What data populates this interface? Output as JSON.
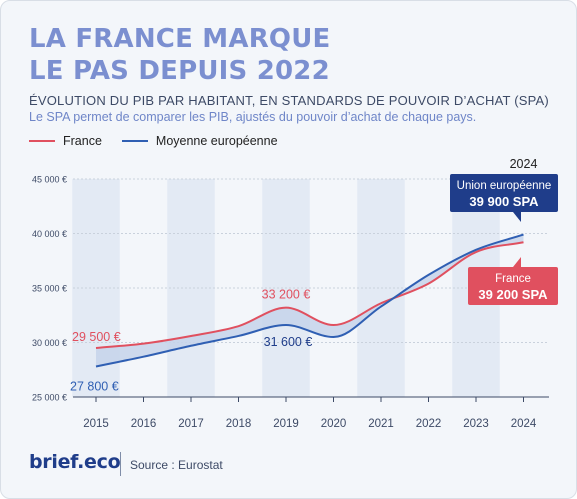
{
  "header": {
    "title_line1": "LA FRANCE MARQUE",
    "title_line2": "LE PAS DEPUIS 2022",
    "subtitle": "ÉVOLUTION DU PIB PAR HABITANT, EN STANDARDS DE POUVOIR D’ACHAT (SPA)",
    "note": "Le SPA permet de comparer les PIB, ajustés du pouvoir d’achat de chaque pays."
  },
  "legend": [
    {
      "label": "France",
      "color": "#e0505f"
    },
    {
      "label": "Moyenne européenne",
      "color": "#2f5fb3"
    }
  ],
  "chart_data": {
    "type": "line",
    "x": [
      2015,
      2016,
      2017,
      2018,
      2019,
      2020,
      2021,
      2022,
      2023,
      2024
    ],
    "x_tick_labels": [
      "2015",
      "2016",
      "2017",
      "2018",
      "2019",
      "2020",
      "2021",
      "2022",
      "2023",
      "2024"
    ],
    "ylim": [
      25000,
      45000
    ],
    "y_ticks": [
      25000,
      30000,
      35000,
      40000,
      45000
    ],
    "y_tick_labels": [
      "25 000 €",
      "30 000 €",
      "35 000 €",
      "40 000 €",
      "45 000 €"
    ],
    "grid": true,
    "series": [
      {
        "name": "France",
        "color": "#e0505f",
        "values": [
          29500,
          29900,
          30600,
          31500,
          33200,
          31600,
          33600,
          35400,
          38300,
          39200
        ]
      },
      {
        "name": "Moyenne européenne",
        "color": "#2f5fb3",
        "values": [
          27800,
          28700,
          29700,
          30600,
          31600,
          30500,
          33300,
          36200,
          38500,
          39900
        ]
      }
    ],
    "year_label": "2024",
    "annotations": {
      "fr_2015": "29 500 €",
      "eu_2015": "27 800 €",
      "fr_2019": "33 200 €",
      "eu_2019": "31 600 €"
    },
    "callouts": {
      "eu": {
        "line1": "Union européenne",
        "line2": "39 900 SPA"
      },
      "fr": {
        "line1": "France",
        "line2": "39 200 SPA"
      }
    }
  },
  "footer": {
    "logo": "brief.eco",
    "source": "Source : Eurostat"
  }
}
